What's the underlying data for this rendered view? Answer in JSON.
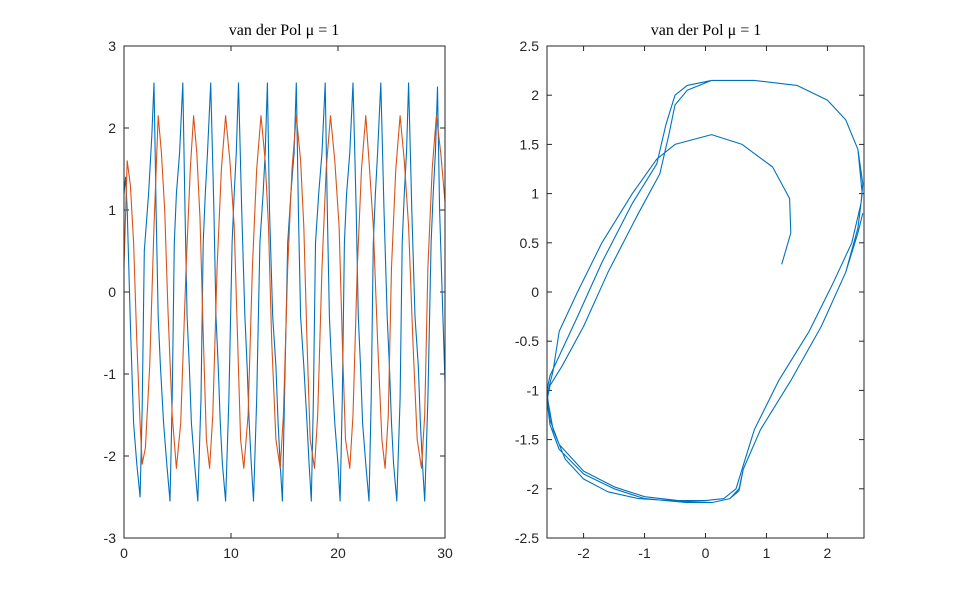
{
  "chart_data": [
    {
      "type": "line",
      "title": "van der Pol μ = 1",
      "xlabel": "",
      "ylabel": "",
      "xlim": [
        0,
        30
      ],
      "ylim": [
        -3,
        3
      ],
      "xticks": [
        0,
        10,
        20,
        30
      ],
      "yticks": [
        -3,
        -2,
        -1,
        0,
        1,
        2,
        3
      ],
      "grid": false,
      "box": true,
      "series": [
        {
          "color": "#0072BD",
          "description_of_shape": "relaxation oscillation, narrow spikes",
          "x": [
            0,
            0.15,
            0.3,
            0.6,
            0.9,
            1.2,
            1.5,
            1.7,
            1.9,
            2.3,
            2.6,
            2.8,
            3.0,
            3.2,
            3.4,
            3.7,
            4.0,
            4.3,
            4.5,
            4.7,
            4.9,
            5.2,
            5.5,
            5.7,
            5.9,
            6.1,
            6.3,
            6.6,
            6.9,
            7.2,
            7.4,
            7.6,
            7.8,
            8.1,
            8.4,
            8.6,
            8.8,
            9.0,
            9.2,
            9.5,
            9.8,
            10.1,
            10.3,
            10.5,
            10.7,
            11.0,
            11.3,
            11.5,
            11.7,
            11.9,
            12.1,
            12.4,
            12.7,
            13.0,
            13.2,
            13.4,
            13.6,
            13.9,
            14.2,
            14.4,
            14.6,
            14.8,
            15.0,
            15.3,
            15.6,
            15.9,
            16.1,
            16.3,
            16.5,
            16.8,
            17.1,
            17.3,
            17.5,
            17.7,
            17.9,
            18.2,
            18.5,
            18.8,
            19.0,
            19.2,
            19.4,
            19.7,
            20.0,
            20.2,
            20.4,
            20.6,
            20.8,
            21.1,
            21.4,
            21.7,
            21.9,
            22.1,
            22.3,
            22.6,
            22.9,
            23.1,
            23.3,
            23.5,
            23.7,
            24.0,
            24.3,
            24.6,
            24.8,
            25.0,
            25.2,
            25.5,
            25.8,
            26.0,
            26.2,
            26.4,
            26.6,
            26.9,
            27.2,
            27.5,
            27.7,
            27.9,
            28.1,
            28.4,
            28.7,
            28.9,
            29.1,
            29.3,
            29.5,
            29.8,
            30
          ],
          "y": [
            1.2,
            1.4,
            1.0,
            -0.4,
            -1.6,
            -2.1,
            -2.5,
            -1.4,
            0.5,
            1.2,
            1.9,
            2.55,
            1.0,
            -0.3,
            -0.9,
            -1.6,
            -2.1,
            -2.55,
            -1.3,
            0.6,
            1.2,
            1.7,
            2.55,
            1.0,
            -0.3,
            -0.9,
            -1.6,
            -2.1,
            -2.55,
            -1.3,
            0.6,
            1.2,
            1.7,
            2.55,
            1.0,
            -0.3,
            -0.9,
            -1.6,
            -2.1,
            -2.55,
            -1.3,
            0.6,
            1.2,
            1.7,
            2.55,
            1.0,
            -0.3,
            -0.9,
            -1.6,
            -2.1,
            -2.55,
            -1.3,
            0.6,
            1.2,
            1.7,
            2.55,
            1.0,
            -0.3,
            -0.9,
            -1.6,
            -2.1,
            -2.55,
            -1.3,
            0.6,
            1.2,
            1.7,
            2.55,
            1.0,
            -0.3,
            -0.9,
            -1.6,
            -2.1,
            -2.55,
            -1.3,
            0.6,
            1.2,
            1.7,
            2.55,
            1.0,
            -0.3,
            -0.9,
            -1.6,
            -2.1,
            -2.55,
            -1.3,
            0.6,
            1.2,
            1.7,
            2.55,
            1.0,
            -0.3,
            -0.9,
            -1.6,
            -2.1,
            -2.55,
            -1.3,
            0.6,
            1.2,
            1.7,
            2.55,
            1.0,
            -0.3,
            -0.9,
            -1.6,
            -2.1,
            -2.55,
            -1.3,
            0.6,
            1.2,
            1.7,
            2.55,
            1.0,
            -0.3,
            -0.9,
            -1.6,
            -2.1,
            -2.55,
            -1.3,
            0.6,
            1.2,
            1.7,
            2.5,
            1.0,
            -0.3,
            -1.1
          ]
        },
        {
          "color": "#D95319",
          "x": [
            0,
            0.3,
            0.6,
            0.9,
            1.2,
            1.5,
            1.7,
            2.0,
            2.4,
            2.8,
            3.2,
            3.5,
            3.8,
            4.1,
            4.5,
            4.9,
            5.3,
            5.8,
            6.2,
            6.5,
            6.8,
            7.1,
            7.4,
            7.7,
            8.0,
            8.3,
            8.7,
            9.1,
            9.5,
            9.9,
            10.3,
            10.6,
            10.9,
            11.2,
            11.6,
            12.0,
            12.4,
            12.8,
            13.2,
            13.5,
            13.8,
            14.2,
            14.6,
            14.9,
            15.3,
            15.7,
            16.1,
            16.5,
            16.8,
            17.1,
            17.4,
            17.8,
            18.1,
            18.5,
            18.9,
            19.3,
            19.7,
            20.1,
            20.4,
            20.7,
            21.1,
            21.4,
            21.8,
            22.2,
            22.6,
            22.9,
            23.3,
            23.7,
            24.1,
            24.4,
            24.7,
            25.0,
            25.4,
            25.8,
            26.2,
            26.6,
            27.0,
            27.4,
            27.8,
            28.1,
            28.4,
            28.8,
            29.2,
            29.6,
            30
          ],
          "y": [
            0.3,
            1.6,
            1.3,
            0.6,
            -0.6,
            -1.6,
            -2.1,
            -1.9,
            -0.9,
            0.8,
            2.15,
            1.7,
            1.0,
            -0.2,
            -1.5,
            -2.15,
            -1.6,
            0.3,
            1.5,
            2.15,
            1.7,
            0.9,
            -0.5,
            -1.8,
            -2.15,
            -1.5,
            0.3,
            1.5,
            2.15,
            1.6,
            0.8,
            -0.5,
            -1.8,
            -2.15,
            -1.5,
            0.3,
            1.5,
            2.15,
            1.6,
            0.8,
            -0.6,
            -1.8,
            -2.15,
            -1.5,
            0.3,
            1.5,
            2.15,
            1.6,
            0.8,
            -0.6,
            -1.8,
            -2.15,
            -1.5,
            0.3,
            1.5,
            2.15,
            1.6,
            0.8,
            -0.6,
            -1.8,
            -2.15,
            -1.5,
            0.3,
            1.5,
            2.15,
            1.6,
            0.8,
            -0.6,
            -1.8,
            -2.15,
            -1.5,
            0.3,
            1.5,
            2.15,
            1.6,
            0.8,
            -0.6,
            -1.8,
            -2.15,
            -1.5,
            0.3,
            1.5,
            2.15,
            1.7,
            1.1
          ]
        }
      ]
    },
    {
      "type": "line",
      "title": "van der Pol μ = 1",
      "xlabel": "",
      "ylabel": "",
      "xlim": [
        -2.6,
        2.6
      ],
      "ylim": [
        -2.5,
        2.5
      ],
      "xticks": [
        -2,
        -1,
        0,
        1,
        2
      ],
      "yticks": [
        -2.5,
        -2,
        -1.5,
        -1,
        -0.5,
        0,
        0.5,
        1,
        1.5,
        2,
        2.5
      ],
      "grid": false,
      "box": true,
      "series": [
        {
          "color": "#0072BD",
          "x": [
            1.25,
            1.4,
            1.38,
            1.1,
            0.6,
            0.1,
            -0.5,
            -0.8,
            -1.2,
            -1.7,
            -2.1,
            -2.4,
            -2.5,
            -2.6,
            -2.5,
            -2.3,
            -2.0,
            -1.6,
            -1.1,
            -0.6,
            0.0,
            0.3,
            0.5,
            0.6,
            0.8,
            1.2,
            1.7,
            2.1,
            2.4,
            2.55,
            2.58,
            2.5,
            2.3,
            2.0,
            1.5,
            0.8,
            0.1,
            -0.3,
            -0.5,
            -0.6,
            -0.75,
            -1.1,
            -1.6,
            -2.0,
            -2.35,
            -2.55,
            -2.6,
            -2.55,
            -2.4,
            -2.0,
            -1.5,
            -1.0,
            -0.3,
            0.1,
            0.4,
            0.55,
            0.62,
            0.9,
            1.4,
            1.9,
            2.3,
            2.5,
            2.57,
            2.5,
            2.3,
            2.0,
            1.5,
            0.8,
            0.1,
            -0.3,
            -0.5,
            -0.65,
            -0.8,
            -1.2,
            -1.7,
            -2.1,
            -2.4,
            -2.55,
            -2.6,
            -2.55,
            -2.4,
            -2.0,
            -1.5,
            -1.0,
            -0.3,
            0.1,
            0.4,
            0.55,
            0.62,
            0.9,
            1.4,
            1.9,
            2.3,
            2.5,
            2.58
          ],
          "y": [
            0.28,
            0.6,
            0.95,
            1.27,
            1.5,
            1.6,
            1.5,
            1.35,
            1.0,
            0.5,
            0.0,
            -0.4,
            -0.8,
            -1.05,
            -1.4,
            -1.7,
            -1.9,
            -2.03,
            -2.1,
            -2.12,
            -2.12,
            -2.1,
            -2.0,
            -1.8,
            -1.4,
            -0.9,
            -0.4,
            0.1,
            0.5,
            0.9,
            1.1,
            1.45,
            1.75,
            1.95,
            2.1,
            2.15,
            2.15,
            2.05,
            1.9,
            1.6,
            1.2,
            0.8,
            0.2,
            -0.35,
            -0.75,
            -0.95,
            -1.1,
            -1.35,
            -1.6,
            -1.85,
            -2.0,
            -2.1,
            -2.14,
            -2.14,
            -2.1,
            -2.0,
            -1.8,
            -1.4,
            -0.9,
            -0.35,
            0.2,
            0.65,
            1.0,
            1.45,
            1.75,
            1.95,
            2.1,
            2.15,
            2.15,
            2.1,
            2.0,
            1.7,
            1.3,
            0.9,
            0.3,
            -0.25,
            -0.65,
            -0.85,
            -1.0,
            -1.3,
            -1.55,
            -1.82,
            -1.98,
            -2.08,
            -2.13,
            -2.14,
            -2.1,
            -2.02,
            -1.8,
            -1.4,
            -0.9,
            -0.35,
            0.2,
            0.6,
            0.8
          ]
        }
      ]
    }
  ]
}
